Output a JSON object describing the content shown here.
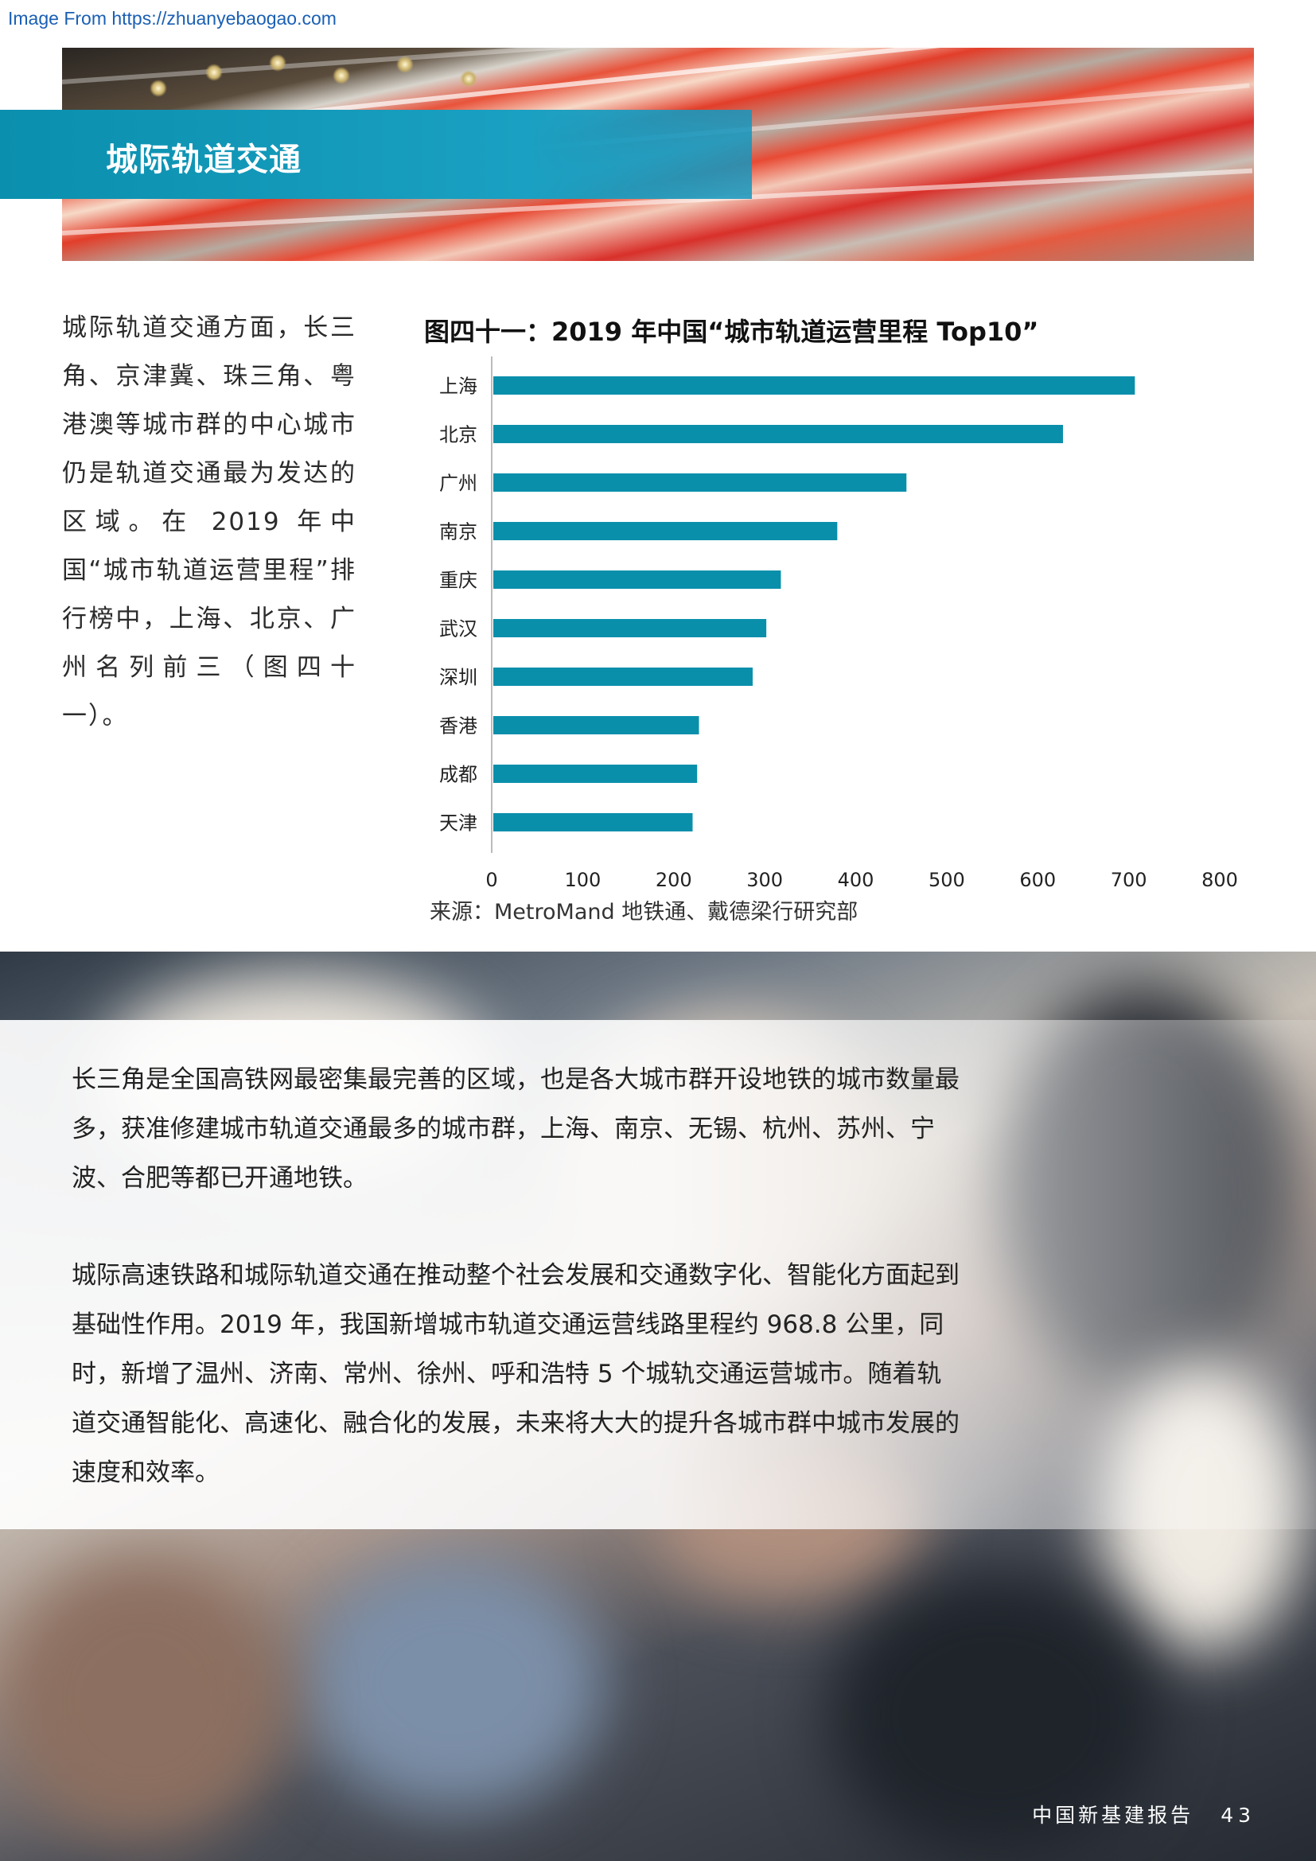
{
  "watermark": "Image From https://zhuanyebaogao.com",
  "banner": {
    "title": "城际轨道交通"
  },
  "intro": "城际轨道交通方面，长三角、京津冀、珠三角、粤港澳等城市群的中心城市仍是轨道交通最为发达的区域。在 2019 年中国“城市轨道运营里程”排行榜中，上海、北京、广州名列前三（图四十一）。",
  "chart_data": {
    "type": "bar",
    "orientation": "horizontal",
    "title": "图四十一：2019 年中国“城市轨道运营里程 Top10”",
    "categories": [
      "上海",
      "北京",
      "广州",
      "南京",
      "重庆",
      "武汉",
      "深圳",
      "香港",
      "成都",
      "天津"
    ],
    "values": [
      705,
      626,
      454,
      378,
      316,
      300,
      285,
      226,
      224,
      219
    ],
    "xlim": [
      0,
      800
    ],
    "xticks": [
      "0",
      "100",
      "200",
      "300",
      "400",
      "500",
      "600",
      "700",
      "800"
    ],
    "bar_color": "#0a8fab",
    "grid": false,
    "source": "来源：MetroMand 地铁通、戴德梁行研究部"
  },
  "paragraphs": [
    "长三角是全国高铁网最密集最完善的区域，也是各大城市群开设地铁的城市数量最多，获准修建城市轨道交通最多的城市群，上海、南京、无锡、杭州、苏州、宁波、合肥等都已开通地铁。",
    "城际高速铁路和城际轨道交通在推动整个社会发展和交通数字化、智能化方面起到基础性作用。2019 年，我国新增城市轨道交通运营线路里程约 968.8 公里，同时，新增了温州、济南、常州、徐州、呼和浩特 5 个城轨交通运营城市。随着轨道交通智能化、高速化、融合化的发展，未来将大大的提升各城市群中城市发展的速度和效率。"
  ],
  "footer": {
    "report": "中国新基建报告",
    "page": "43"
  }
}
